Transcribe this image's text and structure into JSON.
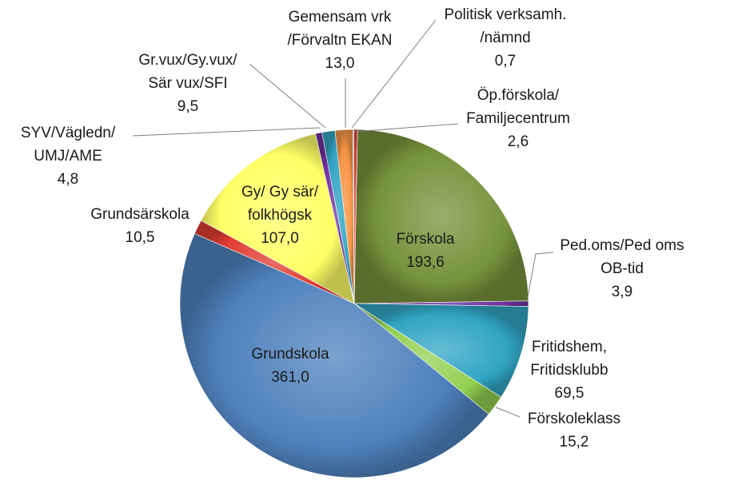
{
  "chart_data": {
    "type": "pie",
    "title": "",
    "slices": [
      {
        "label": "Förskola",
        "value": 193.6,
        "value_text": "193,6",
        "color": "#77933c"
      },
      {
        "label": "Ped.oms/Ped oms OB-tid",
        "value": 3.9,
        "value_text": "3,9",
        "color": "#7030a0"
      },
      {
        "label": "Fritidshem, Fritidsklubb",
        "value": 69.5,
        "value_text": "69,5",
        "color": "#31a5c4"
      },
      {
        "label": "Förskoleklass",
        "value": 15.2,
        "value_text": "15,2",
        "color": "#92d050"
      },
      {
        "label": "Grundskola",
        "value": 361.0,
        "value_text": "361,0",
        "color": "#4f81bd"
      },
      {
        "label": "Grundsärskola",
        "value": 10.5,
        "value_text": "10,5",
        "color": "#e03c31"
      },
      {
        "label": "Gy/ Gy sär/ folkhögsk",
        "value": 107.0,
        "value_text": "107,0",
        "color": "#ffff66"
      },
      {
        "label": "SYV/Vägledn/ UMJ/AME",
        "value": 4.8,
        "value_text": "4,8",
        "color": "#7030a0"
      },
      {
        "label": "Gr.vux/Gy.vux/ Sär vux/SFI",
        "value": 9.5,
        "value_text": "9,5",
        "color": "#31a5c4"
      },
      {
        "label": "Gemensam vrk /Förvaltn EKAN",
        "value": 13.0,
        "value_text": "13,0",
        "color": "#f79646"
      },
      {
        "label": "Politisk verksamh. /nämnd",
        "value": 0.7,
        "value_text": "0,7",
        "color": "#4f81bd"
      },
      {
        "label": "Öp.förskola/ Familjecentrum",
        "value": 2.6,
        "value_text": "2,6",
        "color": "#e03c31"
      }
    ],
    "label_lines": [
      [
        "Förskola",
        "193,6"
      ],
      [
        "Ped.oms/Ped oms",
        "OB-tid",
        "3,9"
      ],
      [
        "Fritidshem,",
        "Fritidsklubb",
        "69,5"
      ],
      [
        "Förskoleklass",
        "15,2"
      ],
      [
        "Grundskola",
        "361,0"
      ],
      [
        "Grundsärskola",
        "10,5"
      ],
      [
        "Gy/ Gy sär/",
        "folkhögsk",
        "107,0"
      ],
      [
        "SYV/Vägledn/",
        "UMJ/AME",
        "4,8"
      ],
      [
        "Gr.vux/Gy.vux/",
        "Sär vux/SFI",
        "9,5"
      ],
      [
        "Gemensam vrk",
        "/Förvaltn EKAN",
        "13,0"
      ],
      [
        "Politisk verksamh.",
        "/nämnd",
        "0,7"
      ],
      [
        "Öp.förskola/",
        "Familjecentrum",
        "2,6"
      ]
    ],
    "legend": "none"
  }
}
